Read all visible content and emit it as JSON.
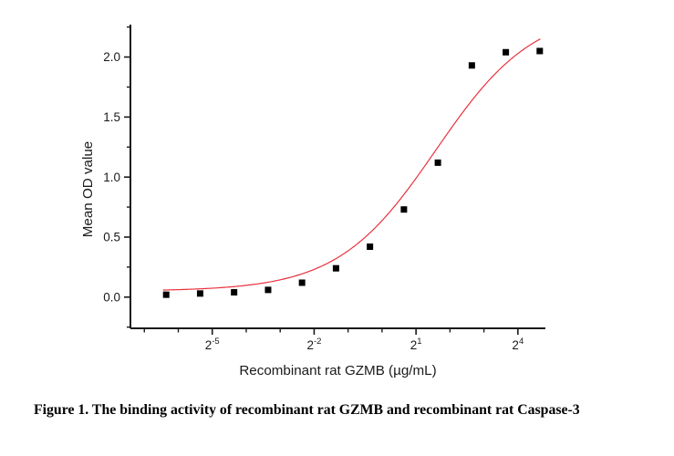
{
  "caption": "Figure 1. The binding activity of recombinant rat GZMB and recombinant rat Caspase-3",
  "chart_data": {
    "type": "scatter",
    "title": "",
    "xlabel": "Recombinant rat GZMB (µg/mL)",
    "ylabel": "Mean OD value",
    "x_scale": "log2",
    "x_log2_range": [
      -7.41,
      4.81
    ],
    "y_range": [
      -0.26,
      2.27
    ],
    "grid": false,
    "legend": "none",
    "axis_color": "#1a1a1a",
    "x_major_ticks": [
      {
        "log2": -5,
        "mantissa": "2",
        "exponent": "-5"
      },
      {
        "log2": -2,
        "mantissa": "2",
        "exponent": "-2"
      },
      {
        "log2": 1,
        "mantissa": "2",
        "exponent": "1"
      },
      {
        "log2": 4,
        "mantissa": "2",
        "exponent": "4"
      }
    ],
    "x_minor_ticks_log2": [
      -7,
      -6,
      -4,
      -3,
      -1,
      0,
      2,
      3
    ],
    "y_major_ticks": [
      {
        "value": 0.0,
        "label": "0.0"
      },
      {
        "value": 0.5,
        "label": "0.5"
      },
      {
        "value": 1.0,
        "label": "1.0"
      },
      {
        "value": 1.5,
        "label": "1.5"
      },
      {
        "value": 2.0,
        "label": "2.0"
      }
    ],
    "y_minor_ticks": [
      -0.25,
      0.25,
      0.75,
      1.25,
      1.75,
      2.25
    ],
    "series": [
      {
        "name": "Mean OD value",
        "marker": "square",
        "marker_color": "#000000",
        "marker_size": 7,
        "points": [
          {
            "x": 0.0122,
            "y": 0.02
          },
          {
            "x": 0.0244,
            "y": 0.03
          },
          {
            "x": 0.0488,
            "y": 0.04
          },
          {
            "x": 0.0977,
            "y": 0.06
          },
          {
            "x": 0.1953,
            "y": 0.12
          },
          {
            "x": 0.3906,
            "y": 0.24
          },
          {
            "x": 0.7813,
            "y": 0.42
          },
          {
            "x": 1.5625,
            "y": 0.73
          },
          {
            "x": 3.125,
            "y": 1.12
          },
          {
            "x": 6.25,
            "y": 1.93
          },
          {
            "x": 12.5,
            "y": 2.04
          },
          {
            "x": 25,
            "y": 2.05
          }
        ]
      }
    ],
    "fit_curve": {
      "model": "4PL",
      "color": "#e8323e",
      "bottom": 0.05,
      "top": 2.4,
      "ec50": 3.0,
      "hill": 1.0,
      "x_log2_range": [
        -6.45,
        4.66
      ]
    }
  }
}
